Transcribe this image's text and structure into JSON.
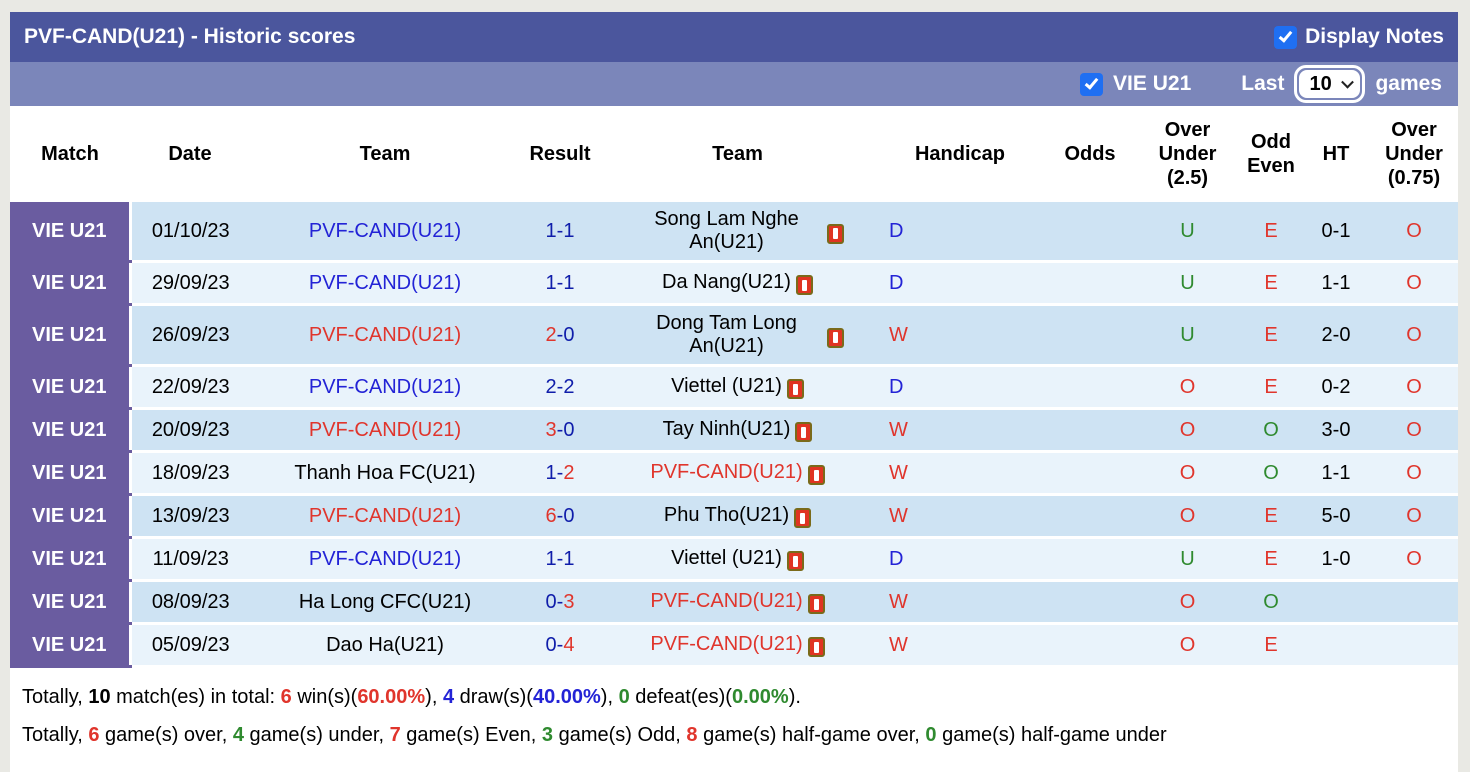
{
  "colors": {
    "red": "#e0352c",
    "blue": "#2323d6",
    "navy": "#0f1daa",
    "green": "#2f8a2f",
    "black": "#000000",
    "bar_top": "#4b569d",
    "bar_sub": "#7b86ba",
    "match_purple": "#6a5ca0",
    "row_dark": "#cee3f3",
    "row_light": "#e9f3fb",
    "checkbox_blue": "#1f6ff2"
  },
  "header": {
    "title": "PVF-CAND(U21) - Historic scores",
    "display_notes_label": "Display Notes",
    "display_notes_checked": true
  },
  "filter_bar": {
    "team_checkbox_label": "VIE U21",
    "team_checkbox_checked": true,
    "last_label": "Last",
    "games_selected": "10",
    "games_label": "games"
  },
  "table": {
    "columns": [
      "Match",
      "Date",
      "Team",
      "Result",
      "Team",
      "Handicap",
      "Odds",
      "Over\nUnder\n(2.5)",
      "Odd\nEven",
      "HT",
      "Over\nUnder\n(0.75)"
    ],
    "rows": [
      {
        "match": "VIE U21",
        "date": "01/10/23",
        "team1": "PVF-CAND(U21)",
        "team1_color": "blue",
        "score_home": "1",
        "score_home_color": "navy",
        "score_away": "1",
        "score_away_color": "navy",
        "team2": "Song Lam Nghe An(U21)",
        "team2_color": "black",
        "team2_red_card": false,
        "outcome": "D",
        "outcome_color": "blue",
        "handicap": "",
        "odds": "",
        "over_under_25": "U",
        "over_under_25_color": "green",
        "odd_even": "E",
        "odd_even_color": "red",
        "ht": "0-1",
        "over_under_075": "O",
        "over_under_075_color": "red"
      },
      {
        "match": "VIE U21",
        "date": "29/09/23",
        "team1": "PVF-CAND(U21)",
        "team1_color": "blue",
        "score_home": "1",
        "score_home_color": "navy",
        "score_away": "1",
        "score_away_color": "navy",
        "team2": "Da Nang(U21)",
        "team2_color": "black",
        "team2_red_card": false,
        "outcome": "D",
        "outcome_color": "blue",
        "handicap": "",
        "odds": "",
        "over_under_25": "U",
        "over_under_25_color": "green",
        "odd_even": "E",
        "odd_even_color": "red",
        "ht": "1-1",
        "over_under_075": "O",
        "over_under_075_color": "red"
      },
      {
        "match": "VIE U21",
        "date": "26/09/23",
        "team1": "PVF-CAND(U21)",
        "team1_color": "red",
        "score_home": "2",
        "score_home_color": "red",
        "score_away": "0",
        "score_away_color": "navy",
        "team2": "Dong Tam Long An(U21)",
        "team2_color": "black",
        "team2_red_card": true,
        "outcome": "W",
        "outcome_color": "red",
        "handicap": "",
        "odds": "",
        "over_under_25": "U",
        "over_under_25_color": "green",
        "odd_even": "E",
        "odd_even_color": "red",
        "ht": "2-0",
        "over_under_075": "O",
        "over_under_075_color": "red"
      },
      {
        "match": "VIE U21",
        "date": "22/09/23",
        "team1": "PVF-CAND(U21)",
        "team1_color": "blue",
        "score_home": "2",
        "score_home_color": "navy",
        "score_away": "2",
        "score_away_color": "navy",
        "team2": "Viettel (U21)",
        "team2_color": "black",
        "team2_red_card": false,
        "outcome": "D",
        "outcome_color": "blue",
        "handicap": "",
        "odds": "",
        "over_under_25": "O",
        "over_under_25_color": "red",
        "odd_even": "E",
        "odd_even_color": "red",
        "ht": "0-2",
        "over_under_075": "O",
        "over_under_075_color": "red"
      },
      {
        "match": "VIE U21",
        "date": "20/09/23",
        "team1": "PVF-CAND(U21)",
        "team1_color": "red",
        "score_home": "3",
        "score_home_color": "red",
        "score_away": "0",
        "score_away_color": "navy",
        "team2": "Tay Ninh(U21)",
        "team2_color": "black",
        "team2_red_card": false,
        "outcome": "W",
        "outcome_color": "red",
        "handicap": "",
        "odds": "",
        "over_under_25": "O",
        "over_under_25_color": "red",
        "odd_even": "O",
        "odd_even_color": "green",
        "ht": "3-0",
        "over_under_075": "O",
        "over_under_075_color": "red"
      },
      {
        "match": "VIE U21",
        "date": "18/09/23",
        "team1": "Thanh Hoa FC(U21)",
        "team1_color": "black",
        "score_home": "1",
        "score_home_color": "navy",
        "score_away": "2",
        "score_away_color": "red",
        "team2": "PVF-CAND(U21)",
        "team2_color": "red",
        "team2_red_card": false,
        "outcome": "W",
        "outcome_color": "red",
        "handicap": "",
        "odds": "",
        "over_under_25": "O",
        "over_under_25_color": "red",
        "odd_even": "O",
        "odd_even_color": "green",
        "ht": "1-1",
        "over_under_075": "O",
        "over_under_075_color": "red"
      },
      {
        "match": "VIE U21",
        "date": "13/09/23",
        "team1": "PVF-CAND(U21)",
        "team1_color": "red",
        "score_home": "6",
        "score_home_color": "red",
        "score_away": "0",
        "score_away_color": "navy",
        "team2": "Phu Tho(U21)",
        "team2_color": "black",
        "team2_red_card": false,
        "outcome": "W",
        "outcome_color": "red",
        "handicap": "",
        "odds": "",
        "over_under_25": "O",
        "over_under_25_color": "red",
        "odd_even": "E",
        "odd_even_color": "red",
        "ht": "5-0",
        "over_under_075": "O",
        "over_under_075_color": "red"
      },
      {
        "match": "VIE U21",
        "date": "11/09/23",
        "team1": "PVF-CAND(U21)",
        "team1_color": "blue",
        "score_home": "1",
        "score_home_color": "navy",
        "score_away": "1",
        "score_away_color": "navy",
        "team2": "Viettel (U21)",
        "team2_color": "black",
        "team2_red_card": false,
        "outcome": "D",
        "outcome_color": "blue",
        "handicap": "",
        "odds": "",
        "over_under_25": "U",
        "over_under_25_color": "green",
        "odd_even": "E",
        "odd_even_color": "red",
        "ht": "1-0",
        "over_under_075": "O",
        "over_under_075_color": "red"
      },
      {
        "match": "VIE U21",
        "date": "08/09/23",
        "team1": "Ha Long CFC(U21)",
        "team1_color": "black",
        "score_home": "0",
        "score_home_color": "navy",
        "score_away": "3",
        "score_away_color": "red",
        "team2": "PVF-CAND(U21)",
        "team2_color": "red",
        "team2_red_card": false,
        "outcome": "W",
        "outcome_color": "red",
        "handicap": "",
        "odds": "",
        "over_under_25": "O",
        "over_under_25_color": "red",
        "odd_even": "O",
        "odd_even_color": "green",
        "ht": "",
        "over_under_075": "",
        "over_under_075_color": "red"
      },
      {
        "match": "VIE U21",
        "date": "05/09/23",
        "team1": "Dao Ha(U21)",
        "team1_color": "black",
        "score_home": "0",
        "score_home_color": "navy",
        "score_away": "4",
        "score_away_color": "red",
        "team2": "PVF-CAND(U21)",
        "team2_color": "red",
        "team2_red_card": false,
        "outcome": "W",
        "outcome_color": "red",
        "handicap": "",
        "odds": "",
        "over_under_25": "O",
        "over_under_25_color": "red",
        "odd_even": "E",
        "odd_even_color": "red",
        "ht": "",
        "over_under_075": "",
        "over_under_075_color": "red"
      }
    ]
  },
  "summary": {
    "line1": [
      {
        "t": "Totally, ",
        "c": "black",
        "b": false
      },
      {
        "t": "10",
        "c": "black",
        "b": true
      },
      {
        "t": " match(es) in total: ",
        "c": "black",
        "b": false
      },
      {
        "t": "6",
        "c": "red",
        "b": true
      },
      {
        "t": " win(s)(",
        "c": "black",
        "b": false
      },
      {
        "t": "60.00%",
        "c": "red",
        "b": true
      },
      {
        "t": "), ",
        "c": "black",
        "b": false
      },
      {
        "t": "4",
        "c": "blue",
        "b": true
      },
      {
        "t": " draw(s)(",
        "c": "black",
        "b": false
      },
      {
        "t": "40.00%",
        "c": "blue",
        "b": true
      },
      {
        "t": "), ",
        "c": "black",
        "b": false
      },
      {
        "t": "0",
        "c": "green",
        "b": true
      },
      {
        "t": " defeat(es)(",
        "c": "black",
        "b": false
      },
      {
        "t": "0.00%",
        "c": "green",
        "b": true
      },
      {
        "t": ").",
        "c": "black",
        "b": false
      }
    ],
    "line2": [
      {
        "t": "Totally, ",
        "c": "black",
        "b": false
      },
      {
        "t": "6",
        "c": "red",
        "b": true
      },
      {
        "t": " game(s) over, ",
        "c": "black",
        "b": false
      },
      {
        "t": "4",
        "c": "green",
        "b": true
      },
      {
        "t": " game(s) under, ",
        "c": "black",
        "b": false
      },
      {
        "t": "7",
        "c": "red",
        "b": true
      },
      {
        "t": " game(s) Even, ",
        "c": "black",
        "b": false
      },
      {
        "t": "3",
        "c": "green",
        "b": true
      },
      {
        "t": " game(s) Odd, ",
        "c": "black",
        "b": false
      },
      {
        "t": "8",
        "c": "red",
        "b": true
      },
      {
        "t": " game(s) half-game over, ",
        "c": "black",
        "b": false
      },
      {
        "t": "0",
        "c": "green",
        "b": true
      },
      {
        "t": " game(s) half-game under",
        "c": "black",
        "b": false
      }
    ]
  }
}
